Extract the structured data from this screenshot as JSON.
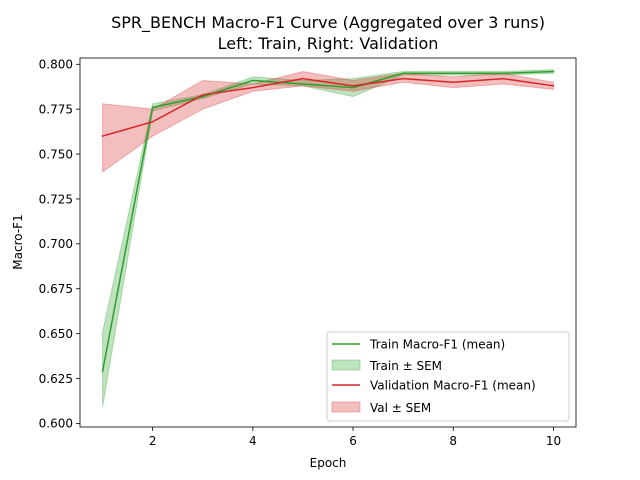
{
  "chart_data": {
    "type": "line",
    "title_line1": "SPR_BENCH Macro-F1 Curve (Aggregated over 3 runs)",
    "title_line2": "Left: Train, Right: Validation",
    "xlabel": "Epoch",
    "ylabel": "Macro-F1",
    "xlim": [
      0.55,
      10.45
    ],
    "ylim": [
      0.598,
      0.8035
    ],
    "xticks": [
      2,
      4,
      6,
      8,
      10
    ],
    "yticks": [
      0.6,
      0.625,
      0.65,
      0.675,
      0.7,
      0.725,
      0.75,
      0.775,
      0.8
    ],
    "ytick_labels": [
      "0.600",
      "0.625",
      "0.650",
      "0.675",
      "0.700",
      "0.725",
      "0.750",
      "0.775",
      "0.800"
    ],
    "grid": false,
    "legend_position": "lower-right",
    "x": [
      1,
      2,
      3,
      4,
      5,
      6,
      7,
      8,
      9,
      10
    ],
    "series": [
      {
        "name": "Train Macro-F1 (mean)",
        "band_name": "Train ± SEM",
        "color": "#2ca02c",
        "values": [
          0.629,
          0.776,
          0.782,
          0.791,
          0.789,
          0.787,
          0.795,
          0.795,
          0.795,
          0.796
        ],
        "lower": [
          0.609,
          0.774,
          0.781,
          0.789,
          0.788,
          0.782,
          0.794,
          0.794,
          0.794,
          0.795
        ],
        "upper": [
          0.651,
          0.778,
          0.783,
          0.793,
          0.791,
          0.792,
          0.796,
          0.796,
          0.796,
          0.797
        ]
      },
      {
        "name": "Validation Macro-F1 (mean)",
        "band_name": "Val ± SEM",
        "color": "#d62728",
        "values": [
          0.76,
          0.768,
          0.783,
          0.787,
          0.792,
          0.788,
          0.792,
          0.79,
          0.792,
          0.788
        ],
        "lower": [
          0.74,
          0.76,
          0.775,
          0.785,
          0.788,
          0.785,
          0.79,
          0.787,
          0.789,
          0.786
        ],
        "upper": [
          0.778,
          0.775,
          0.791,
          0.789,
          0.796,
          0.791,
          0.795,
          0.793,
          0.795,
          0.79
        ]
      }
    ]
  }
}
